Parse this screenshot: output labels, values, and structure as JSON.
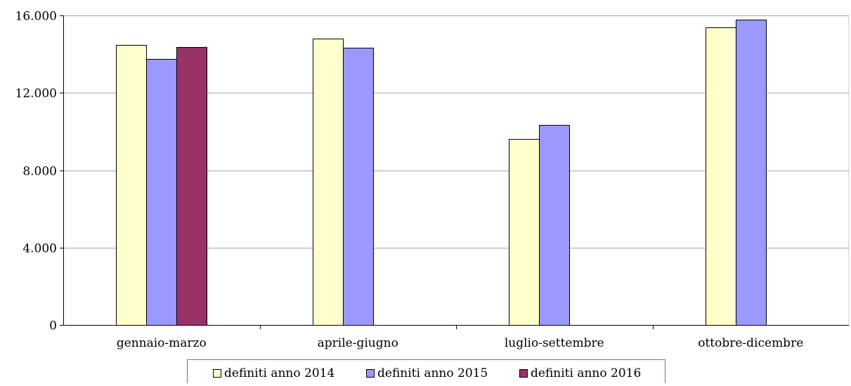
{
  "chart_data": {
    "type": "bar",
    "title": "",
    "xlabel": "",
    "ylabel": "",
    "categories": [
      "gennaio-marzo",
      "aprile-giugno",
      "luglio-settembre",
      "ottobre-dicembre"
    ],
    "series": [
      {
        "name": "definiti anno 2014",
        "color": "#ffffcc",
        "values": [
          14480,
          14820,
          9610,
          15380
        ]
      },
      {
        "name": "definiti anno 2015",
        "color": "#9999ff",
        "values": [
          13740,
          14330,
          10350,
          15790
        ]
      },
      {
        "name": "definiti anno 2016",
        "color": "#993366",
        "values": [
          14370,
          null,
          null,
          null
        ]
      }
    ],
    "ylim": [
      0,
      16000
    ],
    "yticks": [
      0,
      4000,
      8000,
      12000,
      16000
    ],
    "ytick_labels": [
      "0",
      "4.000",
      "8.000",
      "12.000",
      "16.000"
    ],
    "grid": true,
    "legend_position": "bottom"
  }
}
